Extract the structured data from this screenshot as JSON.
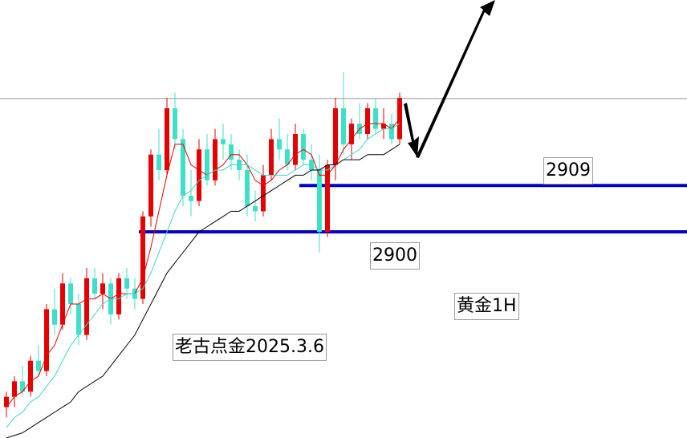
{
  "chart_data": {
    "type": "candlestick",
    "title": "黄金1H",
    "watermark": "老古点金2025.3.6",
    "up_color": "#e60000",
    "down_color": "#3fe0c8",
    "ylim": [
      2860,
      2945
    ],
    "levels": [
      2909,
      2900
    ],
    "level_color": "#0000c8",
    "last_price_line": 2925.9,
    "open": [
      2866,
      2868,
      2871,
      2869,
      2875,
      2873,
      2885,
      2882,
      2890,
      2886,
      2880,
      2891,
      2888,
      2890,
      2884,
      2891,
      2889,
      2887,
      2903,
      2915,
      2912,
      2924,
      2918,
      2907,
      2906,
      2916,
      2910,
      2918,
      2917,
      2914,
      2912,
      2905,
      2904,
      2911,
      2918,
      2916,
      2913,
      2919,
      2914,
      2912,
      2900,
      2913,
      2924,
      2917,
      2921,
      2919,
      2924,
      2920,
      2921,
      2918
    ],
    "high": [
      2869,
      2872,
      2874,
      2876,
      2878,
      2886,
      2889,
      2892,
      2891,
      2888,
      2893,
      2893,
      2892,
      2891,
      2892,
      2893,
      2891,
      2904,
      2916,
      2920,
      2926,
      2927,
      2920,
      2912,
      2918,
      2919,
      2920,
      2921,
      2919,
      2916,
      2915,
      2908,
      2913,
      2920,
      2922,
      2919,
      2921,
      2920,
      2917,
      2915,
      2914,
      2926,
      2931,
      2922,
      2925,
      2925,
      2926,
      2924,
      2923,
      2927
    ],
    "low": [
      2864,
      2866,
      2868,
      2868,
      2872,
      2872,
      2880,
      2881,
      2884,
      2878,
      2879,
      2887,
      2885,
      2882,
      2883,
      2887,
      2885,
      2886,
      2901,
      2910,
      2911,
      2916,
      2905,
      2903,
      2905,
      2909,
      2909,
      2914,
      2912,
      2910,
      2903,
      2902,
      2903,
      2910,
      2914,
      2912,
      2912,
      2913,
      2910,
      2896,
      2899,
      2910,
      2915,
      2914,
      2918,
      2918,
      2919,
      2918,
      2917,
      2917
    ],
    "close": [
      2868,
      2871,
      2869,
      2875,
      2873,
      2885,
      2882,
      2890,
      2886,
      2880,
      2891,
      2888,
      2890,
      2884,
      2891,
      2889,
      2887,
      2903,
      2915,
      2912,
      2924,
      2918,
      2907,
      2906,
      2916,
      2910,
      2918,
      2917,
      2914,
      2912,
      2905,
      2904,
      2911,
      2918,
      2916,
      2913,
      2919,
      2914,
      2912,
      2900,
      2913,
      2924,
      2917,
      2921,
      2919,
      2924,
      2920,
      2921,
      2918,
      2926
    ],
    "series": [
      {
        "color": "#e60000",
        "values": [
          2866,
          2868,
          2869,
          2871,
          2872,
          2876,
          2878,
          2882,
          2886,
          2886,
          2887,
          2887,
          2888,
          2887,
          2888,
          2888,
          2888,
          2891,
          2897,
          2904,
          2911,
          2917,
          2917,
          2913,
          2912,
          2911,
          2912,
          2913,
          2915,
          2915,
          2913,
          2910,
          2909,
          2910,
          2912,
          2913,
          2915,
          2916,
          2915,
          2911,
          2911,
          2913,
          2916,
          2918,
          2920,
          2921,
          2921,
          2921,
          2920,
          2922
        ]
      },
      {
        "color": "#3fd8c8",
        "values": [
          2862,
          2864,
          2865,
          2867,
          2868,
          2870,
          2872,
          2875,
          2878,
          2880,
          2882,
          2884,
          2886,
          2887,
          2887,
          2888,
          2888,
          2889,
          2892,
          2896,
          2900,
          2904,
          2907,
          2908,
          2910,
          2911,
          2912,
          2912,
          2913,
          2913,
          2913,
          2912,
          2911,
          2911,
          2911,
          2911,
          2912,
          2913,
          2913,
          2912,
          2912,
          2913,
          2914,
          2915,
          2916,
          2918,
          2919,
          2920,
          2920,
          2921
        ]
      },
      {
        "color": "#000000",
        "values": [
          2860,
          2860.5,
          2861,
          2862,
          2863,
          2864,
          2865,
          2866,
          2867,
          2869,
          2870,
          2871,
          2872,
          2874,
          2876,
          2878,
          2880,
          2883,
          2886,
          2889,
          2892,
          2894,
          2896,
          2898,
          2900,
          2901,
          2902,
          2903,
          2904,
          2904,
          2905,
          2906,
          2907,
          2908,
          2909,
          2910,
          2911,
          2911,
          2912,
          2912,
          2913,
          2913,
          2914,
          2914,
          2914,
          2915,
          2915,
          2915,
          2916,
          2917
        ]
      }
    ]
  }
}
